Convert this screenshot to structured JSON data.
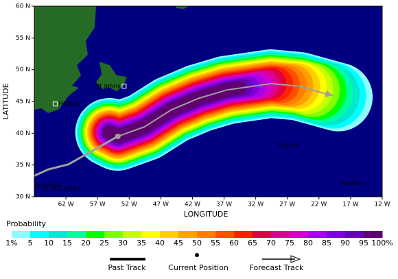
{
  "chart_data": {
    "type": "map",
    "x_label": "LONGITUDE",
    "y_label": "LATITUDE",
    "xlim": [
      -67,
      -12
    ],
    "ylim": [
      30,
      60
    ],
    "xticks": [
      {
        "value": -62,
        "label": "62 W"
      },
      {
        "value": -57,
        "label": "57 W"
      },
      {
        "value": -52,
        "label": "52 W"
      },
      {
        "value": -47,
        "label": "47 W"
      },
      {
        "value": -42,
        "label": "42 W"
      },
      {
        "value": -37,
        "label": "37 W"
      },
      {
        "value": -32,
        "label": "32 W"
      },
      {
        "value": -27,
        "label": "27 W"
      },
      {
        "value": -22,
        "label": "22 W"
      },
      {
        "value": -17,
        "label": "17 W"
      },
      {
        "value": -12,
        "label": "12 W"
      }
    ],
    "yticks": [
      {
        "value": 30,
        "label": "30 N"
      },
      {
        "value": 35,
        "label": "35 N"
      },
      {
        "value": 40,
        "label": "40 N"
      },
      {
        "value": 45,
        "label": "45 N"
      },
      {
        "value": 50,
        "label": "50 N"
      },
      {
        "value": 55,
        "label": "55 N"
      },
      {
        "value": 60,
        "label": "60 N"
      }
    ],
    "past_track": {
      "name": "Past Track",
      "color": "#a0a0a0",
      "lon": [
        -67,
        -64.8,
        -61.6,
        -53.8
      ],
      "lat": [
        33.3,
        34.3,
        35.1,
        39.5
      ]
    },
    "current_position": {
      "name": "Current Position",
      "color": "#a0a0a0",
      "lon": -53.8,
      "lat": 39.5
    },
    "forecast_track": {
      "name": "Forecast Track",
      "color": "#a0a0a0",
      "lon": [
        -53.8,
        -49.6,
        -45.3,
        -41,
        -36.6,
        -29.6,
        -25.2,
        -19.8
      ],
      "lat": [
        39.5,
        41.0,
        43.7,
        45.5,
        46.8,
        47.8,
        47.4,
        45.9
      ]
    },
    "places": [
      {
        "name": "St Johns",
        "lon": -52.8,
        "lat": 47.4
      },
      {
        "name": "Halifax",
        "lon": -63.7,
        "lat": 44.6
      },
      {
        "name": "Azores",
        "lon": -26.9,
        "lat": 38.1
      },
      {
        "name": "Bermuda",
        "lon": -65,
        "lat": 31.8
      },
      {
        "name": "Madeira",
        "lon": -16.7,
        "lat": 32.1
      }
    ],
    "copyright": "© UCL 2023",
    "colorbar": {
      "title": "Probability",
      "ticks": [
        {
          "value": 1,
          "label": "1%"
        },
        5,
        10,
        15,
        20,
        25,
        30,
        35,
        40,
        45,
        50,
        55,
        60,
        65,
        70,
        75,
        80,
        85,
        90,
        95,
        {
          "value": 100,
          "label": "100%"
        }
      ],
      "colors": [
        "#8ffcff",
        "#00ffff",
        "#00e8d0",
        "#00ffa0",
        "#00ff00",
        "#80ff00",
        "#c8ff00",
        "#ffff00",
        "#ffd000",
        "#ffa000",
        "#ff8000",
        "#ff5000",
        "#ff2000",
        "#e00040",
        "#e00090",
        "#d000d0",
        "#a800e8",
        "#8000d8",
        "#6400b4",
        "#600070"
      ]
    }
  }
}
